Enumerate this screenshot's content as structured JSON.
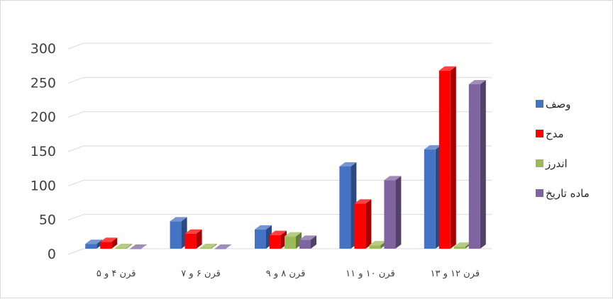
{
  "chart_data": {
    "type": "bar",
    "title": "",
    "xlabel": "",
    "ylabel": "",
    "categories": [
      "قرن ۴ و ۵",
      "قرن ۶ و ۷",
      "قرن ۸ و ۹",
      "قرن ۱۰ و ۱۱",
      "قرن ۱۲ و ۱۳"
    ],
    "series": [
      {
        "name": "وصف",
        "color": "#4472C4",
        "values": [
          7,
          40,
          28,
          120,
          145
        ]
      },
      {
        "name": "مدح",
        "color": "#FF0000",
        "values": [
          10,
          22,
          20,
          66,
          260
        ]
      },
      {
        "name": "اندرز",
        "color": "#9BBB59",
        "values": [
          1,
          1,
          18,
          5,
          3
        ]
      },
      {
        "name": "ماده تاریخ",
        "color": "#8064A2",
        "values": [
          0,
          0,
          13,
          100,
          240
        ]
      }
    ],
    "ylim": [
      0,
      300
    ],
    "yticks": [
      0,
      50,
      100,
      150,
      200,
      250,
      300
    ],
    "grid": true,
    "legend": "right",
    "style": "3d-clustered-column"
  }
}
